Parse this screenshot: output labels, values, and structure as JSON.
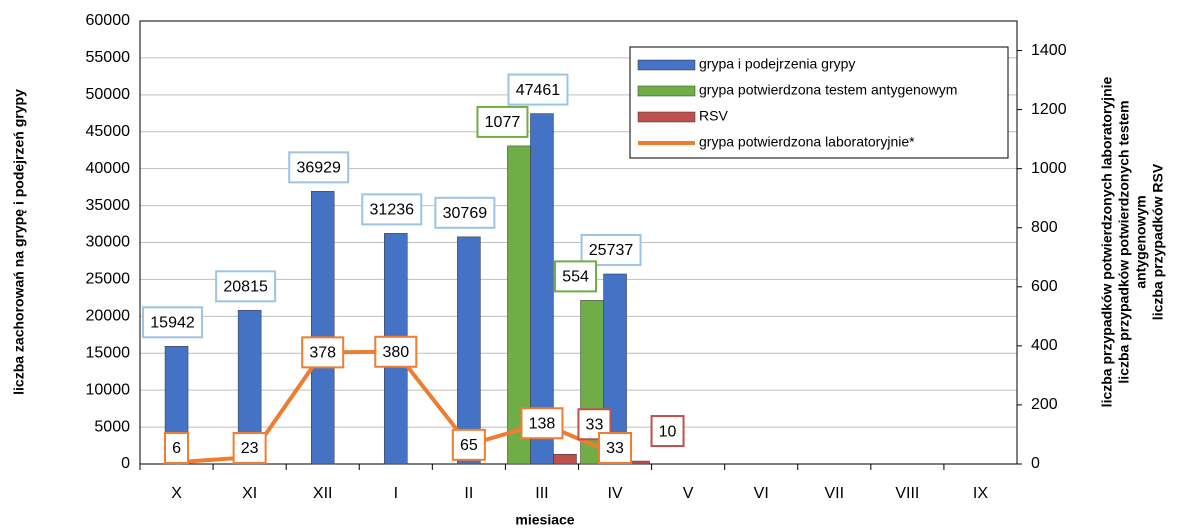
{
  "chart_data": {
    "type": "bar",
    "categories": [
      "X",
      "XI",
      "XII",
      "I",
      "II",
      "III",
      "IV",
      "V",
      "VI",
      "VII",
      "VIII",
      "IX"
    ],
    "series": [
      {
        "name": "grypa i podejrzenia grypy",
        "color": "#4472c4",
        "type": "bar",
        "label_color": "#9dc3e6",
        "values": [
          15942,
          20815,
          36929,
          31236,
          30769,
          47461,
          25737,
          null,
          null,
          null,
          null,
          null
        ]
      },
      {
        "name": "grypa potwierdzona testem antygenowym",
        "color": "#70ad47",
        "type": "bar",
        "axis": "y2",
        "label_color": "#70ad47",
        "values": [
          null,
          null,
          null,
          null,
          null,
          1077,
          554,
          null,
          null,
          null,
          null,
          null
        ]
      },
      {
        "name": "RSV",
        "color": "#c0504d",
        "type": "bar",
        "axis": "y2",
        "label_color": "#c0504d",
        "values": [
          null,
          null,
          null,
          null,
          null,
          33,
          10,
          null,
          null,
          null,
          null,
          null
        ]
      },
      {
        "name": "grypa potwierdzona laboratoryjnie*",
        "color": "#ed7d31",
        "type": "line",
        "axis": "y2",
        "label_color": "#ed7d31",
        "values": [
          6,
          23,
          378,
          380,
          65,
          138,
          33,
          null,
          null,
          null,
          null,
          null
        ]
      }
    ],
    "ylim": [
      0,
      60000
    ],
    "yticks": [
      0,
      5000,
      10000,
      15000,
      20000,
      25000,
      30000,
      35000,
      40000,
      45000,
      50000,
      55000,
      60000
    ],
    "y2lim": [
      0,
      1500
    ],
    "y2ticks": [
      0,
      200,
      400,
      600,
      800,
      1000,
      1200,
      1400
    ],
    "y_label": "liczba  zachorowań na grypę i podejrzeń grypy",
    "y2_label": [
      "liczba przypadków potwierdzonych laboratoryjnie",
      "liczba przypadków potwierdzonych testem",
      "antygenowym",
      "liczba przypadków RSV"
    ],
    "x_label": "miesiace",
    "grid": true,
    "legend": "top-right"
  }
}
